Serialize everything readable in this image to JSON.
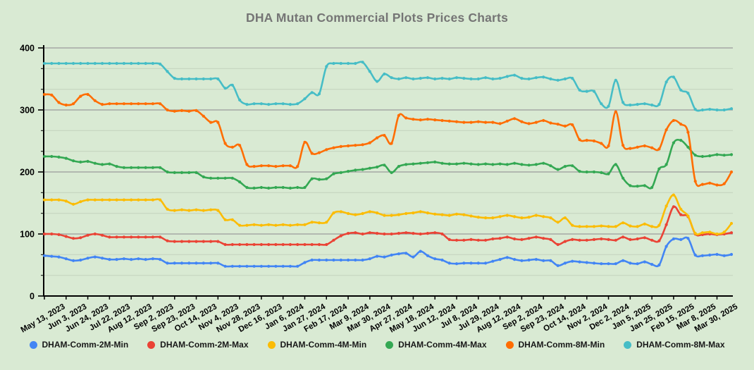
{
  "title": "DHA Mutan Commercial Plots Prices Charts",
  "colors": {
    "background": "#d9ead3",
    "title_text": "#757575",
    "axis_line": "#000000",
    "major_grid": "#9b9b9b",
    "minor_grid": "#c3d2bd",
    "label_text": "#000000"
  },
  "chart_data": {
    "type": "line",
    "title": "DHA Mutan Commercial Plots Prices Charts",
    "legend_position": "bottom",
    "grid": {
      "major_horizontal": true,
      "minor_per_major": 2,
      "vertical": false
    },
    "y_axis": {
      "min": 0,
      "max": 400,
      "tick_labels": [
        "0",
        "100",
        "200",
        "300",
        "400"
      ],
      "tick_step": 100
    },
    "x_labels": [
      "May 13, 2023",
      "Jun 3, 2023",
      "Jun 24, 2023",
      "Jul 22, 2023",
      "Aug 12, 2023",
      "Sep 2, 2023",
      "Sep 23, 2023",
      "Oct 14, 2023",
      "Nov 4, 2023",
      "Nov 28, 2023",
      "Dec 16, 2023",
      "Jan 6, 2024",
      "Jan 27, 2024",
      "Feb 17, 2024",
      "Mar 9, 2024",
      "Mar 30, 2024",
      "Apr 27, 2024",
      "May 18, 2024",
      "Jun 12, 2024",
      "Jul 8, 2024",
      "Jul 29, 2024",
      "Aug 12, 2024",
      "Sep 2, 2024",
      "Sep 23, 2024",
      "Oct 14, 2024",
      "Nov 2, 2024",
      "Dec 2, 2024",
      "Jan 5, 2025",
      "Jan 25, 2025",
      "Feb 15, 2025",
      "Mar 8, 2025",
      "Mar 30, 2025"
    ],
    "points_per_label": 3,
    "points_count": 96,
    "series": [
      {
        "name": "DHAM-Comm-2M-Min",
        "color": "#4285F4",
        "values": [
          65,
          64,
          63,
          60,
          57,
          58,
          61,
          63,
          61,
          59,
          59,
          60,
          59,
          60,
          59,
          60,
          59,
          53,
          53,
          53,
          53,
          53,
          53,
          53,
          53,
          48,
          48,
          48,
          48,
          48,
          48,
          48,
          48,
          48,
          48,
          48,
          54,
          58,
          58,
          58,
          58,
          58,
          58,
          58,
          58,
          60,
          64,
          63,
          66,
          68,
          69,
          63,
          72,
          65,
          60,
          58,
          53,
          52,
          53,
          53,
          53,
          53,
          56,
          59,
          62,
          59,
          57,
          58,
          59,
          57,
          57,
          49,
          53,
          56,
          55,
          54,
          53,
          52,
          52,
          52,
          57,
          53,
          52,
          55,
          51,
          50,
          80,
          92,
          91,
          93,
          66,
          65,
          66,
          67,
          65,
          67
        ]
      },
      {
        "name": "DHAM-Comm-2M-Max",
        "color": "#EA4335",
        "values": [
          100,
          100,
          99,
          96,
          93,
          94,
          98,
          100,
          98,
          95,
          95,
          95,
          95,
          95,
          95,
          95,
          95,
          89,
          88,
          88,
          88,
          88,
          88,
          88,
          88,
          83,
          83,
          83,
          83,
          83,
          83,
          83,
          83,
          83,
          83,
          83,
          83,
          83,
          83,
          83,
          90,
          97,
          101,
          102,
          100,
          102,
          101,
          100,
          100,
          101,
          102,
          101,
          100,
          101,
          102,
          100,
          91,
          90,
          90,
          91,
          90,
          90,
          92,
          93,
          95,
          92,
          91,
          93,
          95,
          93,
          91,
          83,
          88,
          91,
          90,
          90,
          91,
          92,
          91,
          90,
          95,
          91,
          92,
          94,
          90,
          89,
          115,
          144,
          131,
          128,
          100,
          99,
          100,
          99,
          100,
          102
        ]
      },
      {
        "name": "DHAM-Comm-4M-Min",
        "color": "#FBBC04",
        "values": [
          155,
          155,
          155,
          153,
          148,
          152,
          155,
          155,
          155,
          155,
          155,
          155,
          155,
          155,
          155,
          155,
          155,
          140,
          138,
          139,
          138,
          139,
          138,
          139,
          138,
          123,
          123,
          114,
          114,
          115,
          114,
          115,
          114,
          115,
          114,
          115,
          115,
          119,
          118,
          119,
          134,
          136,
          133,
          131,
          133,
          136,
          134,
          130,
          130,
          131,
          133,
          134,
          136,
          134,
          132,
          131,
          130,
          132,
          131,
          129,
          127,
          126,
          126,
          128,
          130,
          128,
          126,
          127,
          130,
          128,
          126,
          119,
          126,
          114,
          112,
          112,
          112,
          113,
          112,
          112,
          118,
          113,
          112,
          116,
          112,
          114,
          145,
          163,
          140,
          129,
          101,
          102,
          103,
          100,
          103,
          117
        ]
      },
      {
        "name": "DHAM-Comm-4M-Max",
        "color": "#34A853",
        "values": [
          225,
          225,
          224,
          222,
          218,
          216,
          217,
          214,
          212,
          213,
          209,
          207,
          207,
          207,
          207,
          207,
          207,
          200,
          199,
          199,
          199,
          199,
          192,
          190,
          190,
          190,
          190,
          184,
          175,
          174,
          175,
          174,
          175,
          175,
          174,
          175,
          175,
          189,
          188,
          189,
          197,
          199,
          201,
          203,
          204,
          206,
          208,
          211,
          199,
          209,
          212,
          213,
          214,
          215,
          216,
          214,
          213,
          213,
          214,
          213,
          212,
          213,
          212,
          213,
          212,
          214,
          212,
          211,
          212,
          214,
          210,
          204,
          209,
          210,
          201,
          200,
          200,
          199,
          197,
          212,
          190,
          178,
          177,
          178,
          175,
          205,
          212,
          247,
          251,
          240,
          227,
          225,
          226,
          228,
          227,
          228
        ]
      },
      {
        "name": "DHAM-Comm-8M-Min",
        "color": "#FF6D01",
        "values": [
          325,
          324,
          312,
          308,
          310,
          322,
          325,
          315,
          309,
          310,
          310,
          310,
          310,
          310,
          310,
          310,
          310,
          300,
          298,
          299,
          298,
          299,
          290,
          280,
          280,
          246,
          240,
          243,
          212,
          209,
          210,
          210,
          209,
          210,
          210,
          209,
          248,
          230,
          231,
          236,
          239,
          241,
          242,
          243,
          244,
          247,
          255,
          259,
          246,
          291,
          287,
          285,
          284,
          285,
          284,
          283,
          282,
          281,
          280,
          280,
          281,
          280,
          280,
          278,
          282,
          286,
          281,
          278,
          280,
          283,
          279,
          277,
          274,
          276,
          252,
          251,
          250,
          246,
          242,
          297,
          243,
          238,
          240,
          242,
          239,
          237,
          268,
          283,
          277,
          264,
          185,
          180,
          182,
          179,
          181,
          200
        ]
      },
      {
        "name": "DHAM-Comm-8M-Max",
        "color": "#46BDC6",
        "values": [
          375,
          375,
          375,
          375,
          375,
          375,
          375,
          375,
          375,
          375,
          375,
          375,
          375,
          375,
          375,
          375,
          374,
          362,
          351,
          350,
          350,
          350,
          350,
          350,
          350,
          335,
          340,
          316,
          309,
          310,
          310,
          309,
          310,
          310,
          309,
          310,
          318,
          328,
          326,
          370,
          375,
          375,
          375,
          375,
          377,
          362,
          346,
          358,
          352,
          350,
          352,
          350,
          351,
          352,
          350,
          351,
          350,
          352,
          351,
          350,
          350,
          352,
          350,
          351,
          354,
          356,
          351,
          350,
          352,
          353,
          350,
          348,
          350,
          351,
          332,
          330,
          330,
          310,
          306,
          348,
          312,
          308,
          309,
          310,
          308,
          309,
          345,
          353,
          332,
          327,
          301,
          300,
          301,
          300,
          300,
          302
        ]
      }
    ]
  }
}
